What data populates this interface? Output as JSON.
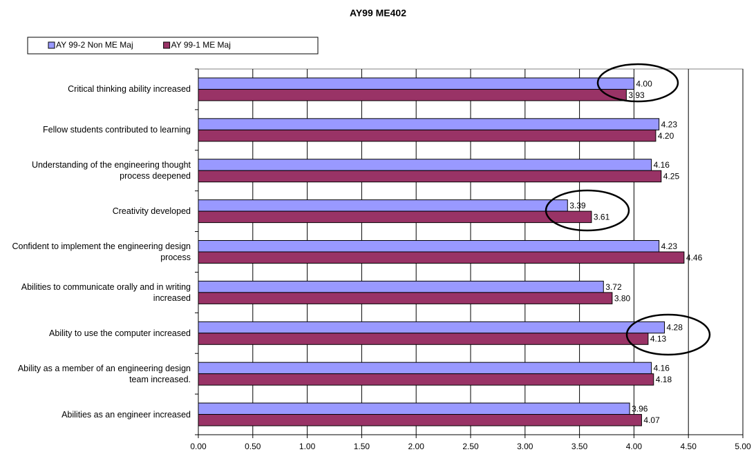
{
  "chart_data": {
    "type": "hbar",
    "title": "AY99 ME402",
    "categories": [
      "Critical thinking ability increased",
      "Fellow students contributed to learning",
      "Understanding of the engineering thought process deepened",
      "Creativity developed",
      "Confident to implement the engineering design process",
      "Abilities to communicate orally and in writing increased",
      "Ability to use the computer increased",
      "Ability as a member of an engineering design team increased.",
      "Abilities as an engineer increased"
    ],
    "series": [
      {
        "name": "AY 99-2 Non ME Maj",
        "color": "#9999ff",
        "values": [
          4.0,
          4.23,
          4.16,
          3.39,
          4.23,
          3.72,
          4.28,
          4.16,
          3.96
        ],
        "value_labels": [
          "4.00",
          "4.23",
          "4.16",
          "3.39",
          "4.23",
          "3.72",
          "4.28",
          "4.16",
          "3.96"
        ]
      },
      {
        "name": "AY 99-1 ME Maj",
        "color": "#993366",
        "values": [
          3.93,
          4.2,
          4.25,
          3.61,
          4.46,
          3.8,
          4.13,
          4.18,
          4.07
        ],
        "value_labels": [
          "3.93",
          "4.20",
          "4.25",
          "3.61",
          "4.46",
          "3.80",
          "4.13",
          "4.18",
          "4.07"
        ]
      }
    ],
    "xlim": [
      0,
      5
    ],
    "xticks": [
      {
        "value": 0,
        "label": "0.00"
      },
      {
        "value": 0.5,
        "label": "0.50"
      },
      {
        "value": 1,
        "label": "1.00"
      },
      {
        "value": 1.5,
        "label": "1.50"
      },
      {
        "value": 2,
        "label": "2.00"
      },
      {
        "value": 2.5,
        "label": "2.50"
      },
      {
        "value": 3,
        "label": "3.00"
      },
      {
        "value": 3.5,
        "label": "3.50"
      },
      {
        "value": 4,
        "label": "4.00"
      },
      {
        "value": 4.5,
        "label": "4.50"
      },
      {
        "value": 5,
        "label": "5.00"
      }
    ],
    "grid": true,
    "legend": "top-left"
  }
}
